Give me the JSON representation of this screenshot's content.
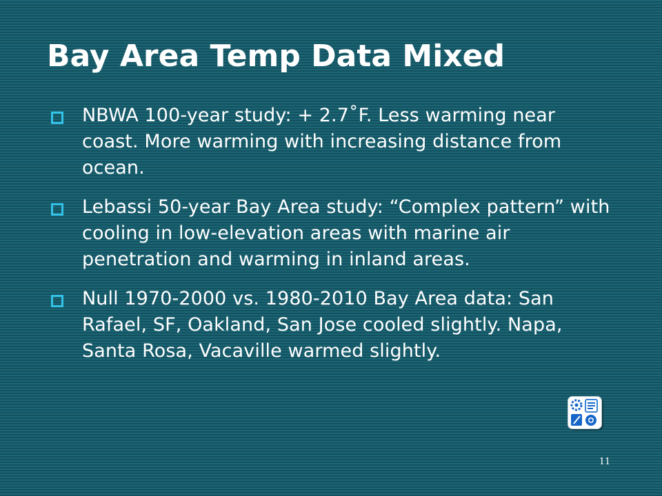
{
  "slide": {
    "title": "Bay Area Temp Data Mixed",
    "bullets": [
      {
        "text": "NBWA 100-year study: + 2.7˚F. Less warming near coast. More warming with increasing distance from ocean."
      },
      {
        "text": "Lebassi 50-year Bay Area study: “Complex pattern” with cooling in low-elevation areas with marine air penetration and warming in inland areas."
      },
      {
        "text": "Null 1970-2000 vs. 1980-2010 Bay Area data: San Rafael, SF, Oakland, San Jose cooled slightly. Napa, Santa Rosa, Vacaville warmed slightly."
      }
    ],
    "page_number": "11"
  },
  "logo": {
    "icon": "app-logo-icon",
    "accent_color": "#1666c8",
    "secondary_color": "#3b82d6"
  },
  "colors": {
    "background": "#1a6272",
    "text": "#ffffff",
    "bullet_marker": "#33c3e8"
  }
}
